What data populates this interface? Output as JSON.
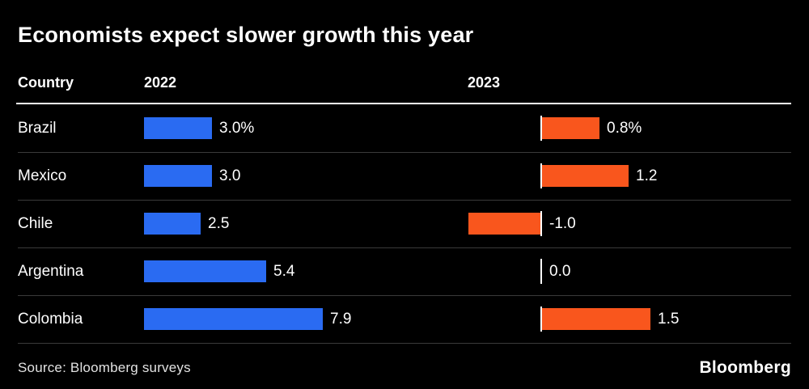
{
  "title": "Economists expect slower growth this year",
  "columns": {
    "country": "Country",
    "y2022": "2022",
    "y2023": "2023"
  },
  "source": "Source: Bloomberg surveys",
  "brand": "Bloomberg",
  "colors": {
    "background": "#000000",
    "text": "#ffffff",
    "bar_2022": "#2a6bf2",
    "bar_2023": "#f9561d",
    "row_divider": "#3a3a3a",
    "header_rule": "#ffffff"
  },
  "chart_data": {
    "type": "bar",
    "orientation": "horizontal",
    "title": "Economists expect slower growth this year",
    "xlabel": "",
    "ylabel": "",
    "categories": [
      "Brazil",
      "Mexico",
      "Chile",
      "Argentina",
      "Colombia"
    ],
    "series": [
      {
        "name": "2022",
        "color": "#2a6bf2",
        "values": [
          3.0,
          3.0,
          2.5,
          5.4,
          7.9
        ],
        "labels": [
          "3.0%",
          "3.0",
          "2.5",
          "5.4",
          "7.9"
        ]
      },
      {
        "name": "2023",
        "color": "#f9561d",
        "values": [
          0.8,
          1.2,
          -1.0,
          0.0,
          1.5
        ],
        "labels": [
          "0.8%",
          "1.2",
          "-1.0",
          "0.0",
          "1.5"
        ]
      }
    ],
    "legend_position": "column-headers",
    "grid": false
  }
}
